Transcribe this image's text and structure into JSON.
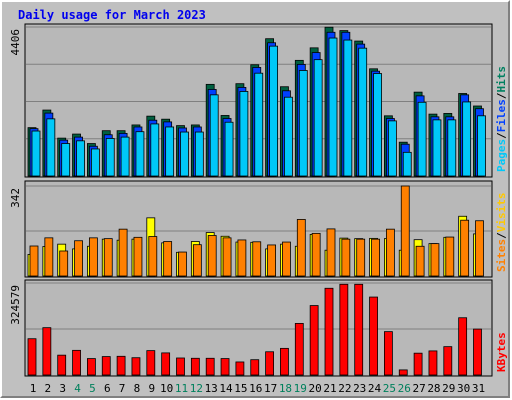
{
  "title": "Daily usage for March 2023",
  "chart_data": [
    {
      "type": "bar",
      "panel": "traffic",
      "max_label": "4406",
      "ylim": [
        0,
        4406
      ],
      "legend": [
        {
          "name": "Pages",
          "color": "#00c8f8"
        },
        {
          "name": "/",
          "color": "#000000"
        },
        {
          "name": "Files",
          "color": "#0040ff"
        },
        {
          "name": "/",
          "color": "#000000"
        },
        {
          "name": "Hits",
          "color": "#008060"
        }
      ],
      "categories": [
        "1",
        "2",
        "3",
        "4",
        "5",
        "6",
        "7",
        "8",
        "9",
        "10",
        "11",
        "12",
        "13",
        "14",
        "15",
        "16",
        "17",
        "18",
        "19",
        "20",
        "21",
        "22",
        "23",
        "24",
        "25",
        "26",
        "27",
        "28",
        "29",
        "30",
        "31"
      ],
      "series": [
        {
          "name": "Hits",
          "color": "#006040",
          "values": [
            1430,
            1950,
            1120,
            1240,
            960,
            1340,
            1340,
            1510,
            1770,
            1680,
            1490,
            1510,
            2710,
            1790,
            2730,
            3290,
            4060,
            2640,
            3420,
            3790,
            4400,
            4300,
            3990,
            3170,
            1780,
            1000,
            2480,
            1830,
            1850,
            2440,
            2070
          ]
        },
        {
          "name": "Files",
          "color": "#0040ff",
          "values": [
            1400,
            1860,
            1060,
            1150,
            880,
            1220,
            1260,
            1450,
            1650,
            1600,
            1420,
            1450,
            2560,
            1700,
            2620,
            3210,
            3940,
            2520,
            3300,
            3650,
            4250,
            4250,
            3900,
            3100,
            1700,
            940,
            2370,
            1750,
            1750,
            2400,
            1990
          ]
        },
        {
          "name": "Pages",
          "color": "#00c8f8",
          "values": [
            1330,
            1690,
            960,
            1040,
            800,
            1110,
            1150,
            1310,
            1540,
            1450,
            1300,
            1300,
            2400,
            1590,
            2500,
            3040,
            3840,
            2330,
            3120,
            3440,
            4080,
            4020,
            3780,
            3030,
            1630,
            700,
            2180,
            1660,
            1660,
            2190,
            1780
          ]
        }
      ]
    },
    {
      "type": "bar",
      "panel": "visits",
      "max_label": "342",
      "ylim": [
        0,
        342
      ],
      "legend": [
        {
          "name": "Sites",
          "color": "#ff8000"
        },
        {
          "name": "/",
          "color": "#000000"
        },
        {
          "name": "Visits",
          "color": "#ffc800"
        }
      ],
      "categories": [
        "1",
        "2",
        "3",
        "4",
        "5",
        "6",
        "7",
        "8",
        "9",
        "10",
        "11",
        "12",
        "13",
        "14",
        "15",
        "16",
        "17",
        "18",
        "19",
        "20",
        "21",
        "22",
        "23",
        "24",
        "25",
        "26",
        "27",
        "28",
        "29",
        "30",
        "31"
      ],
      "series": [
        {
          "name": "Visits",
          "color": "#ffff00",
          "values": [
            82,
            112,
            121,
            103,
            113,
            140,
            136,
            140,
            221,
            126,
            90,
            131,
            165,
            151,
            129,
            128,
            103,
            121,
            113,
            158,
            98,
            144,
            142,
            143,
            142,
            98,
            138,
            123,
            147,
            227,
            160
          ]
        },
        {
          "name": "Sites",
          "color": "#ff8000",
          "values": [
            114,
            145,
            95,
            134,
            145,
            142,
            178,
            147,
            150,
            131,
            91,
            119,
            154,
            145,
            137,
            130,
            118,
            129,
            215,
            162,
            179,
            140,
            140,
            140,
            178,
            342,
            113,
            123,
            148,
            212,
            210
          ]
        }
      ]
    },
    {
      "type": "bar",
      "panel": "kbytes",
      "max_label": "324579",
      "ylim": [
        0,
        324579
      ],
      "legend": [
        {
          "name": "KBytes",
          "color": "#ff0000"
        }
      ],
      "categories": [
        "1",
        "2",
        "3",
        "4",
        "5",
        "6",
        "7",
        "8",
        "9",
        "10",
        "11",
        "12",
        "13",
        "14",
        "15",
        "16",
        "17",
        "18",
        "19",
        "20",
        "21",
        "22",
        "23",
        "24",
        "25",
        "26",
        "27",
        "28",
        "29",
        "30",
        "31"
      ],
      "series": [
        {
          "name": "KBytes",
          "color": "#ff0000",
          "values": [
            128000,
            167000,
            70000,
            87000,
            58000,
            65000,
            66000,
            61000,
            86000,
            78000,
            60000,
            59000,
            59000,
            58000,
            46000,
            54000,
            82000,
            94000,
            182000,
            245000,
            306000,
            320000,
            320000,
            275000,
            153000,
            18000,
            77000,
            85000,
            100000,
            202000,
            162000
          ]
        }
      ]
    }
  ],
  "weekend_days": [
    4,
    5,
    11,
    12,
    18,
    19,
    25,
    26
  ],
  "colors": {
    "weekday": "#000000",
    "weekend": "#00805c"
  }
}
